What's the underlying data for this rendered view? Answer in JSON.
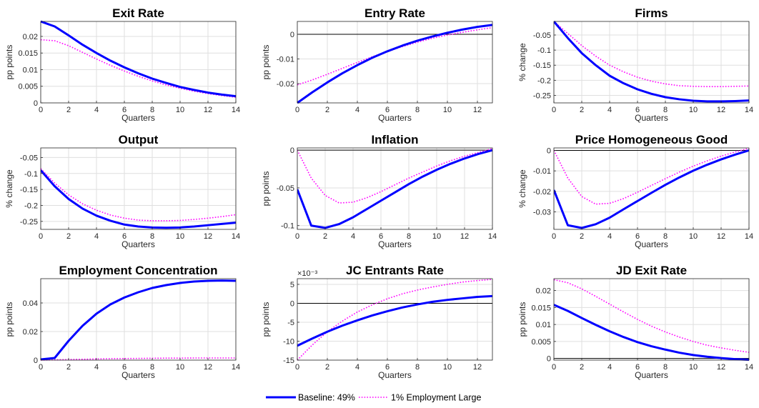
{
  "legend": {
    "items": [
      {
        "label": "Baseline: 49%",
        "color": "#0000ff",
        "style": "solid"
      },
      {
        "label": "1% Employment Large",
        "color": "#ff00ff",
        "style": "dotted"
      }
    ]
  },
  "chart_data": [
    {
      "type": "line",
      "title": "Exit Rate",
      "xlabel": "Quarters",
      "ylabel": "pp points",
      "xlim": [
        0,
        14
      ],
      "ylim": [
        0,
        0.0245
      ],
      "xticks": [
        0,
        2,
        4,
        6,
        8,
        10,
        12,
        14
      ],
      "xtick_labels": [
        "0",
        "2",
        "4",
        "6",
        "8",
        "10",
        "12",
        "14"
      ],
      "yticks": [
        0,
        0.005,
        0.01,
        0.015,
        0.02
      ],
      "ytick_labels": [
        "0",
        "0.005",
        "0.01",
        "0.015",
        "0.02"
      ],
      "zero_line": false,
      "exponent_label": "",
      "grid": true,
      "x": [
        0,
        1,
        2,
        3,
        4,
        5,
        6,
        7,
        8,
        9,
        10,
        11,
        12,
        13,
        14
      ],
      "series": [
        {
          "name": "Baseline: 49%",
          "values": [
            0.0245,
            0.023,
            0.0203,
            0.0175,
            0.015,
            0.0127,
            0.0107,
            0.0089,
            0.0073,
            0.006,
            0.0048,
            0.0039,
            0.0031,
            0.0025,
            0.002
          ]
        },
        {
          "name": "1% Employment Large",
          "values": [
            0.019,
            0.0187,
            0.0172,
            0.0152,
            0.0132,
            0.0113,
            0.0096,
            0.008,
            0.0066,
            0.0054,
            0.0044,
            0.0035,
            0.0028,
            0.0022,
            0.0017
          ]
        }
      ]
    },
    {
      "type": "line",
      "title": "Entry Rate",
      "xlabel": "Quarters",
      "ylabel": "pp points",
      "xlim": [
        0,
        13
      ],
      "ylim": [
        -0.0278,
        0.0052
      ],
      "xticks": [
        0,
        2,
        4,
        6,
        8,
        10,
        12
      ],
      "xtick_labels": [
        "0",
        "2",
        "4",
        "6",
        "8",
        "10",
        "12"
      ],
      "yticks": [
        -0.02,
        -0.01,
        0
      ],
      "ytick_labels": [
        "-0.02",
        "-0.01",
        "0"
      ],
      "zero_line": true,
      "exponent_label": "",
      "grid": true,
      "x": [
        0,
        1,
        2,
        3,
        4,
        5,
        6,
        7,
        8,
        9,
        10,
        11,
        12,
        13
      ],
      "series": [
        {
          "name": "Baseline: 49%",
          "values": [
            -0.0278,
            -0.0235,
            -0.0195,
            -0.0158,
            -0.0125,
            -0.0095,
            -0.0069,
            -0.0046,
            -0.0026,
            -0.0009,
            0.0006,
            0.0019,
            0.003,
            0.0038
          ]
        },
        {
          "name": "1% Employment Large",
          "values": [
            -0.0205,
            -0.0185,
            -0.0162,
            -0.0138,
            -0.0114,
            -0.0091,
            -0.007,
            -0.005,
            -0.0032,
            -0.0016,
            -0.0003,
            0.0008,
            0.0018,
            0.0027
          ]
        }
      ]
    },
    {
      "type": "line",
      "title": "Firms",
      "xlabel": "Quarters",
      "ylabel": "% change",
      "xlim": [
        0,
        14
      ],
      "ylim": [
        -0.275,
        -0.005
      ],
      "xticks": [
        0,
        2,
        4,
        6,
        8,
        10,
        12,
        14
      ],
      "xtick_labels": [
        "0",
        "2",
        "4",
        "6",
        "8",
        "10",
        "12",
        "14"
      ],
      "yticks": [
        -0.25,
        -0.2,
        -0.15,
        -0.1,
        -0.05
      ],
      "ytick_labels": [
        "-0.25",
        "-0.2",
        "-0.15",
        "-0.1",
        "-0.05"
      ],
      "zero_line": false,
      "exponent_label": "",
      "grid": true,
      "x": [
        0,
        1,
        2,
        3,
        4,
        5,
        6,
        7,
        8,
        9,
        10,
        11,
        12,
        13,
        14
      ],
      "series": [
        {
          "name": "Baseline: 49%",
          "values": [
            -0.005,
            -0.06,
            -0.11,
            -0.15,
            -0.185,
            -0.21,
            -0.23,
            -0.245,
            -0.256,
            -0.263,
            -0.268,
            -0.27,
            -0.27,
            -0.269,
            -0.267
          ]
        },
        {
          "name": "1% Employment Large",
          "values": [
            -0.005,
            -0.045,
            -0.085,
            -0.12,
            -0.15,
            -0.172,
            -0.19,
            -0.203,
            -0.212,
            -0.218,
            -0.22,
            -0.221,
            -0.221,
            -0.22,
            -0.219
          ]
        }
      ]
    },
    {
      "type": "line",
      "title": "Output",
      "xlabel": "Quarters",
      "ylabel": "% change",
      "xlim": [
        0,
        14
      ],
      "ylim": [
        -0.275,
        -0.02
      ],
      "xticks": [
        0,
        2,
        4,
        6,
        8,
        10,
        12,
        14
      ],
      "xtick_labels": [
        "0",
        "2",
        "4",
        "6",
        "8",
        "10",
        "12",
        "14"
      ],
      "yticks": [
        -0.25,
        -0.2,
        -0.15,
        -0.1,
        -0.05
      ],
      "ytick_labels": [
        "-0.25",
        "-0.2",
        "-0.15",
        "-0.1",
        "-0.05"
      ],
      "zero_line": false,
      "exponent_label": "",
      "grid": true,
      "x": [
        0,
        1,
        2,
        3,
        4,
        5,
        6,
        7,
        8,
        9,
        10,
        11,
        12,
        13,
        14
      ],
      "series": [
        {
          "name": "Baseline: 49%",
          "values": [
            -0.09,
            -0.14,
            -0.18,
            -0.21,
            -0.232,
            -0.248,
            -0.26,
            -0.266,
            -0.269,
            -0.27,
            -0.269,
            -0.266,
            -0.262,
            -0.258,
            -0.254
          ]
        },
        {
          "name": "1% Employment Large",
          "values": [
            -0.085,
            -0.13,
            -0.167,
            -0.195,
            -0.215,
            -0.23,
            -0.24,
            -0.246,
            -0.248,
            -0.248,
            -0.247,
            -0.244,
            -0.24,
            -0.235,
            -0.229
          ]
        }
      ]
    },
    {
      "type": "line",
      "title": "Inflation",
      "xlabel": "Quarters",
      "ylabel": "pp points",
      "xlim": [
        0,
        14
      ],
      "ylim": [
        -0.105,
        0.003
      ],
      "xticks": [
        0,
        2,
        4,
        6,
        8,
        10,
        12,
        14
      ],
      "xtick_labels": [
        "0",
        "2",
        "4",
        "6",
        "8",
        "10",
        "12",
        "14"
      ],
      "yticks": [
        -0.1,
        -0.05,
        0
      ],
      "ytick_labels": [
        "-0.1",
        "-0.05",
        "0"
      ],
      "zero_line": true,
      "exponent_label": "",
      "grid": true,
      "x": [
        0,
        1,
        2,
        3,
        4,
        5,
        6,
        7,
        8,
        9,
        10,
        11,
        12,
        13,
        14
      ],
      "series": [
        {
          "name": "Baseline: 49%",
          "values": [
            -0.052,
            -0.1,
            -0.103,
            -0.098,
            -0.089,
            -0.078,
            -0.067,
            -0.056,
            -0.045,
            -0.035,
            -0.026,
            -0.018,
            -0.011,
            -0.005,
            0.0
          ]
        },
        {
          "name": "1% Employment Large",
          "values": [
            0.0,
            -0.037,
            -0.06,
            -0.07,
            -0.069,
            -0.063,
            -0.055,
            -0.046,
            -0.037,
            -0.029,
            -0.021,
            -0.014,
            -0.008,
            -0.003,
            0.002
          ]
        }
      ]
    },
    {
      "type": "line",
      "title": "Price Homogeneous Good",
      "xlabel": "Quarters",
      "ylabel": "% change",
      "xlim": [
        0,
        14
      ],
      "ylim": [
        -0.0385,
        0.0012
      ],
      "xticks": [
        0,
        2,
        4,
        6,
        8,
        10,
        12,
        14
      ],
      "xtick_labels": [
        "0",
        "2",
        "4",
        "6",
        "8",
        "10",
        "12",
        "14"
      ],
      "yticks": [
        -0.03,
        -0.02,
        -0.01,
        0
      ],
      "ytick_labels": [
        "-0.03",
        "-0.02",
        "-0.01",
        "0"
      ],
      "zero_line": true,
      "exponent_label": "",
      "grid": true,
      "x": [
        0,
        1,
        2,
        3,
        4,
        5,
        6,
        7,
        8,
        9,
        10,
        11,
        12,
        13,
        14
      ],
      "series": [
        {
          "name": "Baseline: 49%",
          "values": [
            -0.0193,
            -0.0365,
            -0.0378,
            -0.036,
            -0.0328,
            -0.0287,
            -0.0247,
            -0.0207,
            -0.0168,
            -0.0132,
            -0.0099,
            -0.007,
            -0.0044,
            -0.0021,
            0.0
          ]
        },
        {
          "name": "1% Employment Large",
          "values": [
            0.0,
            -0.0135,
            -0.0225,
            -0.0262,
            -0.0258,
            -0.0235,
            -0.0204,
            -0.0171,
            -0.0138,
            -0.0106,
            -0.0077,
            -0.0051,
            -0.0028,
            -0.0008,
            0.001
          ]
        }
      ]
    },
    {
      "type": "line",
      "title": "Employment Concentration",
      "xlabel": "Quarters",
      "ylabel": "pp points",
      "xlim": [
        0,
        14
      ],
      "ylim": [
        0,
        0.057
      ],
      "xticks": [
        0,
        2,
        4,
        6,
        8,
        10,
        12,
        14
      ],
      "xtick_labels": [
        "0",
        "2",
        "4",
        "6",
        "8",
        "10",
        "12",
        "14"
      ],
      "yticks": [
        0,
        0.02,
        0.04
      ],
      "ytick_labels": [
        "0",
        "0.02",
        "0.04"
      ],
      "zero_line": false,
      "exponent_label": "",
      "grid": true,
      "x": [
        0,
        1,
        2,
        3,
        4,
        5,
        6,
        7,
        8,
        9,
        10,
        11,
        12,
        13,
        14
      ],
      "series": [
        {
          "name": "Baseline: 49%",
          "values": [
            0.0005,
            0.0015,
            0.0135,
            0.024,
            0.0325,
            0.039,
            0.0438,
            0.0475,
            0.0505,
            0.0525,
            0.054,
            0.055,
            0.0555,
            0.0557,
            0.0555
          ]
        },
        {
          "name": "1% Employment Large",
          "values": [
            0.0,
            0.0002,
            0.0004,
            0.0006,
            0.0008,
            0.001,
            0.0011,
            0.0012,
            0.0013,
            0.0014,
            0.0014,
            0.0015,
            0.0015,
            0.0015,
            0.0015
          ]
        }
      ]
    },
    {
      "type": "line",
      "title": "JC Entrants Rate",
      "xlabel": "Quarters",
      "ylabel": "pp points",
      "xlim": [
        0,
        13
      ],
      "ylim": [
        -15,
        6.5
      ],
      "xticks": [
        0,
        2,
        4,
        6,
        8,
        10,
        12
      ],
      "xtick_labels": [
        "0",
        "2",
        "4",
        "6",
        "8",
        "10",
        "12"
      ],
      "yticks": [
        -15,
        -10,
        -5,
        0,
        5
      ],
      "ytick_labels": [
        "-15",
        "-10",
        "-5",
        "0",
        "5"
      ],
      "zero_line": true,
      "exponent_label": "×10⁻³",
      "grid": true,
      "x": [
        0,
        1,
        2,
        3,
        4,
        5,
        6,
        7,
        8,
        9,
        10,
        11,
        12,
        13
      ],
      "series": [
        {
          "name": "Baseline: 49%",
          "values": [
            -11.2,
            -9.3,
            -7.5,
            -5.9,
            -4.5,
            -3.2,
            -2.1,
            -1.1,
            -0.3,
            0.4,
            0.9,
            1.3,
            1.7,
            1.9
          ]
        },
        {
          "name": "1% Employment Large",
          "values": [
            -15.0,
            -11.0,
            -7.5,
            -4.7,
            -2.3,
            -0.4,
            1.2,
            2.5,
            3.5,
            4.3,
            5.0,
            5.6,
            6.0,
            6.3
          ]
        }
      ]
    },
    {
      "type": "line",
      "title": "JD Exit Rate",
      "xlabel": "Quarters",
      "ylabel": "pp points",
      "xlim": [
        0,
        14
      ],
      "ylim": [
        -0.0005,
        0.0235
      ],
      "xticks": [
        0,
        2,
        4,
        6,
        8,
        10,
        12,
        14
      ],
      "xtick_labels": [
        "0",
        "2",
        "4",
        "6",
        "8",
        "10",
        "12",
        "14"
      ],
      "yticks": [
        0,
        0.005,
        0.01,
        0.015,
        0.02
      ],
      "ytick_labels": [
        "0",
        "0.005",
        "0.01",
        "0.015",
        "0.02"
      ],
      "zero_line": true,
      "exponent_label": "",
      "grid": true,
      "x": [
        0,
        1,
        2,
        3,
        4,
        5,
        6,
        7,
        8,
        9,
        10,
        11,
        12,
        13,
        14
      ],
      "series": [
        {
          "name": "Baseline: 49%",
          "values": [
            0.0158,
            0.014,
            0.0119,
            0.0099,
            0.008,
            0.0063,
            0.0048,
            0.0036,
            0.0026,
            0.0017,
            0.001,
            0.0005,
            0.0001,
            -0.0002,
            -0.0004
          ]
        },
        {
          "name": "1% Employment Large",
          "values": [
            0.0232,
            0.0223,
            0.0205,
            0.0183,
            0.016,
            0.0137,
            0.0115,
            0.0095,
            0.0078,
            0.0063,
            0.005,
            0.0039,
            0.0031,
            0.0024,
            0.0018
          ]
        }
      ]
    }
  ]
}
